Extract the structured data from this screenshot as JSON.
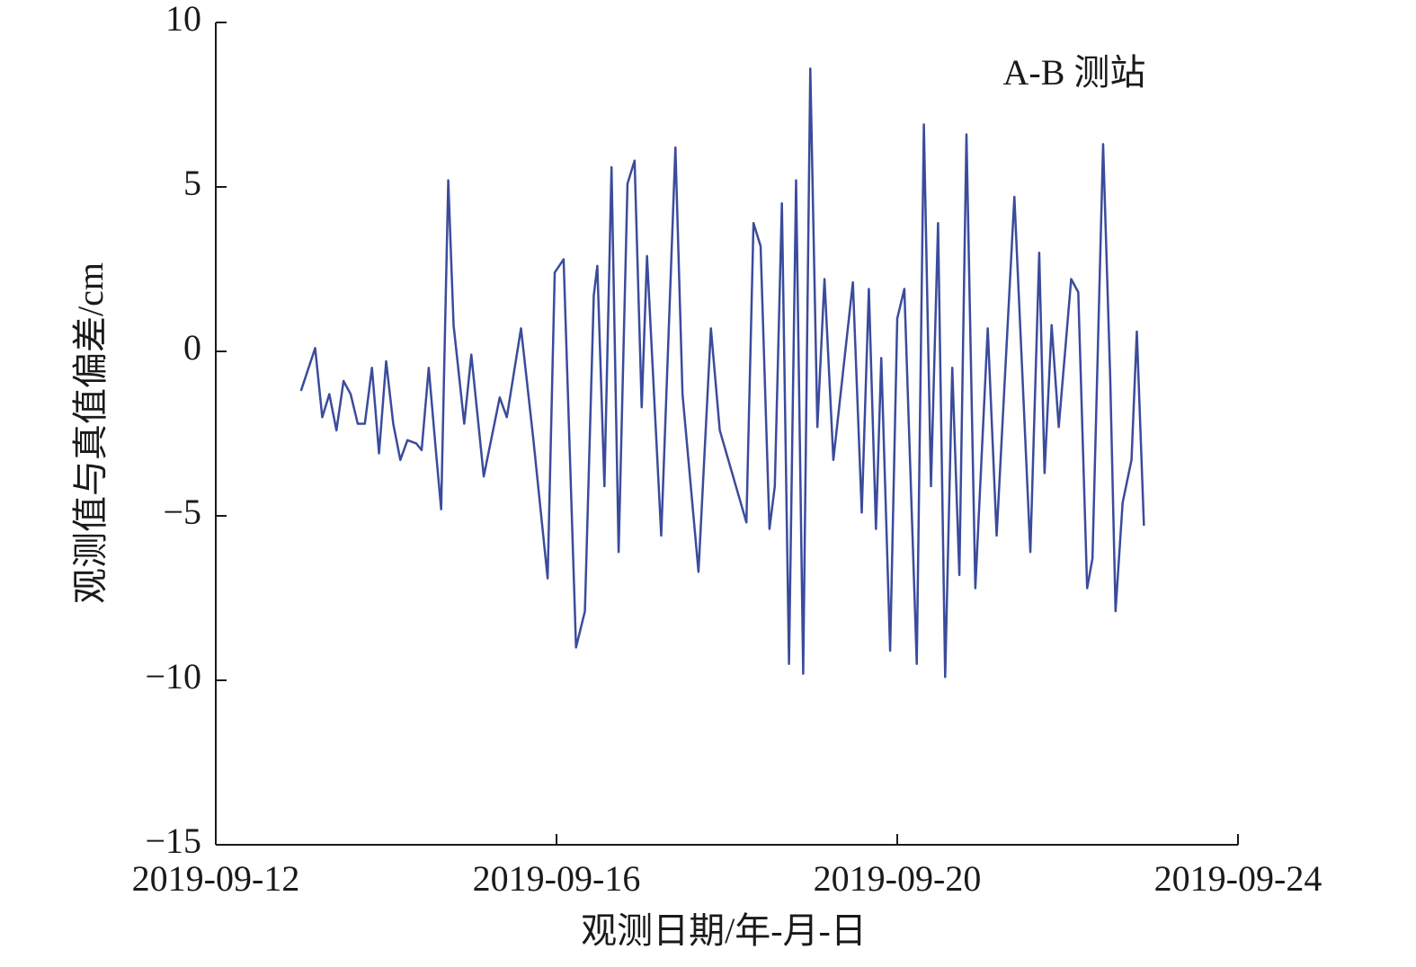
{
  "chart_data": {
    "type": "line",
    "annotation": "A-B 测站",
    "x_label": "观测日期/年-月-日",
    "y_label": "观测值与真值偏差/cm",
    "xlim": [
      "2019-09-12",
      "2019-09-24"
    ],
    "xticks": [
      "2019-09-12",
      "2019-09-16",
      "2019-09-20",
      "2019-09-24"
    ],
    "ylim": [
      -15,
      10
    ],
    "yticks": [
      10,
      5,
      0,
      {
        "value": -5,
        "label": "−5"
      },
      {
        "value": -10,
        "label": "−10"
      },
      {
        "value": -15,
        "label": "−15"
      }
    ],
    "grid": false,
    "x": [
      "2019-09-13 00:00",
      "2019-09-13 04:00",
      "2019-09-13 06:00",
      "2019-09-13 08:00",
      "2019-09-13 10:00",
      "2019-09-13 12:00",
      "2019-09-13 14:00",
      "2019-09-13 16:00",
      "2019-09-13 18:00",
      "2019-09-13 20:00",
      "2019-09-13 22:00",
      "2019-09-14 00:00",
      "2019-09-14 02:00",
      "2019-09-14 04:00",
      "2019-09-14 06:00",
      "2019-09-14 08:30",
      "2019-09-14 10:00",
      "2019-09-14 12:00",
      "2019-09-14 14:00",
      "2019-09-14 15:30",
      "2019-09-14 17:30",
      "2019-09-14 19:00",
      "2019-09-14 22:00",
      "2019-09-15 00:00",
      "2019-09-15 03:30",
      "2019-09-15 08:00",
      "2019-09-15 10:00",
      "2019-09-15 14:00",
      "2019-09-15 17:30",
      "2019-09-15 21:30",
      "2019-09-15 23:30",
      "2019-09-16 02:00",
      "2019-09-16 05:30",
      "2019-09-16 08:00",
      "2019-09-16 10:30",
      "2019-09-16 11:30",
      "2019-09-16 13:30",
      "2019-09-16 15:30",
      "2019-09-16 17:30",
      "2019-09-16 20:00",
      "2019-09-16 22:00",
      "2019-09-17 00:00",
      "2019-09-17 01:30",
      "2019-09-17 05:30",
      "2019-09-17 09:30",
      "2019-09-17 11:30",
      "2019-09-17 16:00",
      "2019-09-17 19:30",
      "2019-09-17 22:00",
      "2019-09-18 05:30",
      "2019-09-18 07:30",
      "2019-09-18 09:30",
      "2019-09-18 12:00",
      "2019-09-18 13:30",
      "2019-09-18 15:30",
      "2019-09-18 17:30",
      "2019-09-18 19:30",
      "2019-09-18 21:30",
      "2019-09-18 23:30",
      "2019-09-19 01:30",
      "2019-09-19 03:30",
      "2019-09-19 06:00",
      "2019-09-19 11:30",
      "2019-09-19 14:00",
      "2019-09-19 16:00",
      "2019-09-19 18:00",
      "2019-09-19 19:30",
      "2019-09-19 22:00",
      "2019-09-20 00:00",
      "2019-09-20 02:00",
      "2019-09-20 05:30",
      "2019-09-20 07:30",
      "2019-09-20 09:30",
      "2019-09-20 11:30",
      "2019-09-20 13:30",
      "2019-09-20 15:30",
      "2019-09-20 17:30",
      "2019-09-20 19:30",
      "2019-09-20 22:00",
      "2019-09-21 01:30",
      "2019-09-21 04:00",
      "2019-09-21 09:00",
      "2019-09-21 13:30",
      "2019-09-21 16:00",
      "2019-09-21 17:30",
      "2019-09-21 19:30",
      "2019-09-21 21:30",
      "2019-09-22 01:00",
      "2019-09-22 03:00",
      "2019-09-22 05:30",
      "2019-09-22 07:00",
      "2019-09-22 10:00",
      "2019-09-22 12:00",
      "2019-09-22 13:30",
      "2019-09-22 15:30",
      "2019-09-22 18:00",
      "2019-09-22 19:30",
      "2019-09-22 21:30"
    ],
    "series": [
      {
        "color": "#3b4b9c",
        "values": [
          -1.2,
          0.1,
          -2.0,
          -1.3,
          -2.4,
          -0.9,
          -1.3,
          -2.2,
          -2.2,
          -0.5,
          -3.1,
          -0.3,
          -2.2,
          -3.3,
          -2.7,
          -2.8,
          -3.0,
          -0.5,
          -3.0,
          -4.8,
          5.2,
          0.8,
          -2.2,
          -0.1,
          -3.8,
          -1.4,
          -2.0,
          0.7,
          -2.7,
          -6.9,
          2.4,
          2.8,
          -9.0,
          -7.9,
          1.7,
          2.6,
          -4.1,
          5.6,
          -6.1,
          5.1,
          5.8,
          -1.7,
          2.9,
          -5.6,
          6.2,
          -1.3,
          -6.7,
          0.7,
          -2.4,
          -5.2,
          3.9,
          3.2,
          -5.4,
          -4.1,
          4.5,
          -9.5,
          5.2,
          -9.8,
          8.6,
          -2.3,
          2.2,
          -3.3,
          2.1,
          -4.9,
          1.9,
          -5.4,
          -0.2,
          -9.1,
          1.0,
          1.9,
          -9.5,
          6.9,
          -4.1,
          3.9,
          -9.9,
          -0.5,
          -6.8,
          6.6,
          -7.2,
          0.7,
          -5.6,
          4.7,
          -6.1,
          3.0,
          -3.7,
          0.8,
          -2.3,
          2.2,
          1.8,
          -7.2,
          -6.3,
          6.3,
          -0.8,
          -7.9,
          -4.6,
          -3.3,
          0.6,
          -5.3
        ]
      }
    ]
  }
}
